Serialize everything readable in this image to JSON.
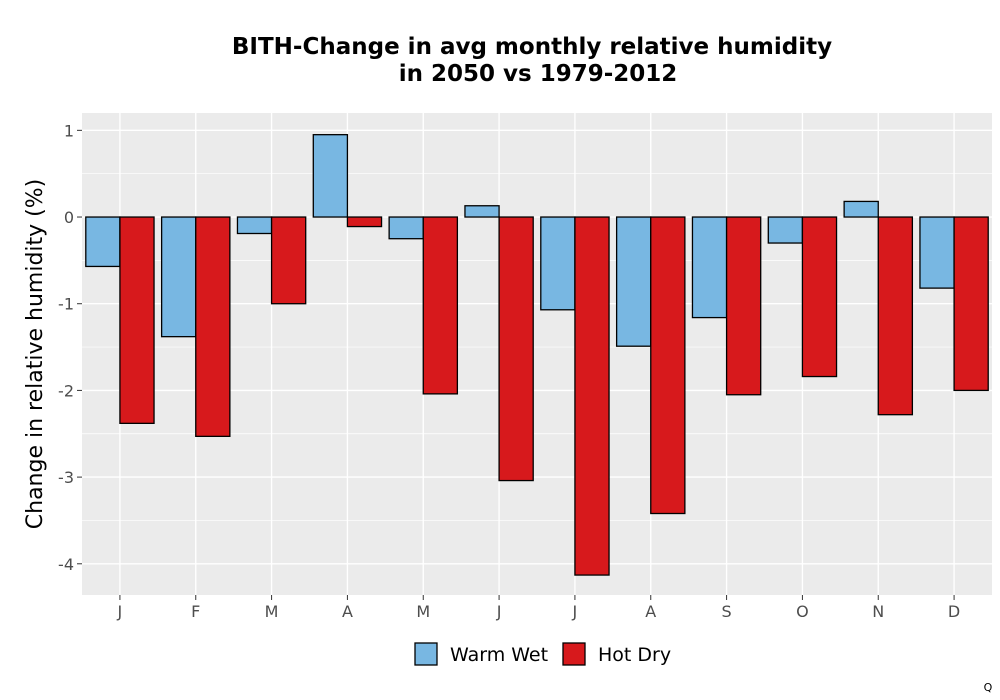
{
  "chart_data": {
    "type": "bar",
    "title": [
      "BITH-Change in avg monthly relative humidity",
      "in 2050 vs 1979-2012"
    ],
    "xlabel": "",
    "ylabel": "Change in relative humidity (%)",
    "categories": [
      "J",
      "F",
      "M",
      "A",
      "M",
      "J",
      "J",
      "A",
      "S",
      "O",
      "N",
      "D"
    ],
    "series": [
      {
        "name": "Warm Wet",
        "color": "#78b7e2",
        "values": [
          -0.57,
          -1.38,
          -0.19,
          0.95,
          -0.25,
          0.13,
          -1.07,
          -1.49,
          -1.16,
          -0.3,
          0.18,
          -0.82
        ]
      },
      {
        "name": "Hot Dry",
        "color": "#d7191c",
        "values": [
          -2.38,
          -2.53,
          -1.0,
          -0.11,
          -2.04,
          -3.04,
          -4.13,
          -3.42,
          -2.05,
          -1.84,
          -2.28,
          -2.0
        ]
      }
    ],
    "ylim": [
      -4.36,
      1.2
    ],
    "yticks": [
      1,
      0,
      -1,
      -2,
      -3,
      -4
    ],
    "ytick_labels": [
      "1",
      "0",
      "-1",
      "-2",
      "-3",
      "-4"
    ],
    "grid": true,
    "legend_position": "bottom"
  },
  "corner_mark": "Q"
}
